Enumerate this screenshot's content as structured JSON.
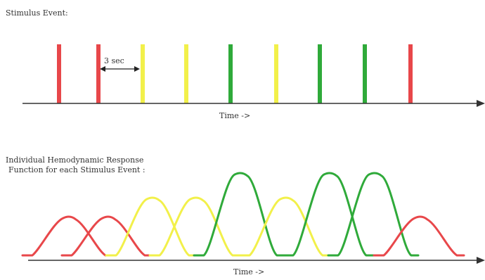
{
  "labels": {
    "stimulus_title": "Stimulus Event:",
    "response_title_line1": "Individual Hemodynamic Response",
    "response_title_line2": "Function for each Stimulus Event :",
    "interval_label": "3 sec",
    "time_axis_top": "Time ->",
    "time_axis_bottom": "Time ->"
  },
  "colors": {
    "red": "#e8474a",
    "yellow": "#f2f04a",
    "green": "#2faa3a",
    "axis": "#333333"
  },
  "events": [
    {
      "color": "red"
    },
    {
      "color": "red"
    },
    {
      "color": "yellow"
    },
    {
      "color": "yellow"
    },
    {
      "color": "green"
    },
    {
      "color": "yellow"
    },
    {
      "color": "green"
    },
    {
      "color": "green"
    },
    {
      "color": "red"
    }
  ]
}
